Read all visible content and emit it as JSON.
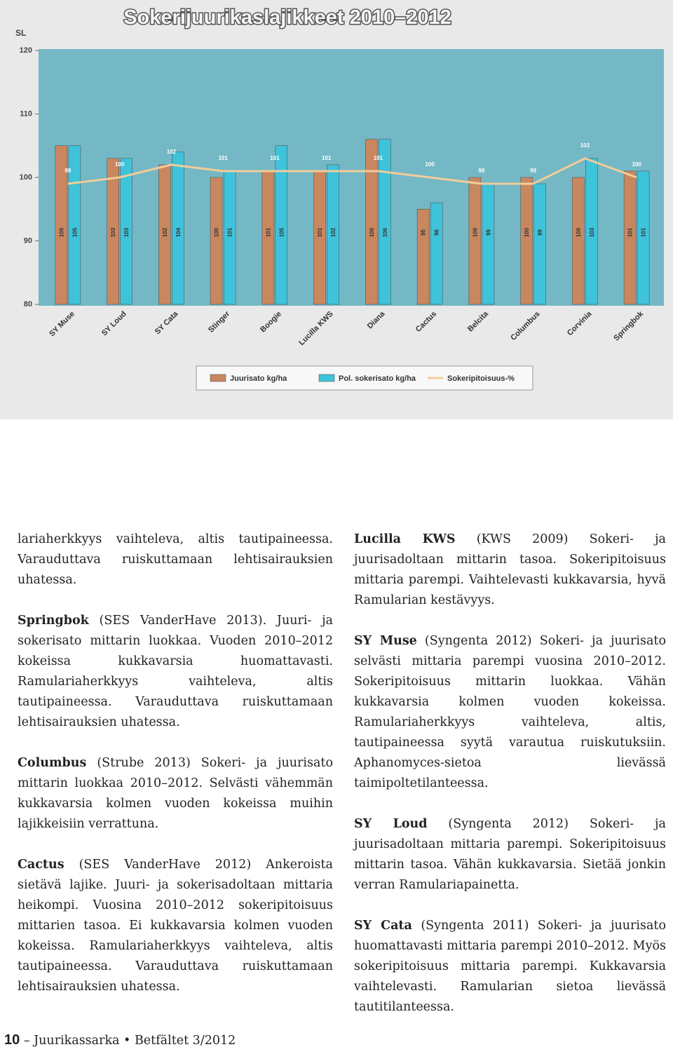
{
  "chart_data": {
    "type": "bar",
    "title": "Sokerijuurikaslajikkeet 2010–2012",
    "y_label": "SL",
    "categories": [
      "SY Muse",
      "SY Loud",
      "SY Cata",
      "Stinger",
      "Boogie",
      "Lucilla KWS",
      "Diana",
      "Cactus",
      "Belcita",
      "Columbus",
      "Corvinia",
      "Springbok"
    ],
    "series": [
      {
        "name": "Juurisato kg/ha",
        "color": "#c9875f",
        "type": "bar",
        "values": [
          105,
          103,
          102,
          100,
          101,
          101,
          106,
          95,
          100,
          100,
          100,
          101
        ]
      },
      {
        "name": "Pol. sokerisato kg/ha",
        "color": "#3ec3da",
        "type": "bar",
        "values": [
          105,
          103,
          104,
          101,
          105,
          102,
          106,
          96,
          99,
          99,
          103,
          101
        ]
      },
      {
        "name": "Sokeripitoisuus-%",
        "color": "#f2cc98",
        "type": "line",
        "values": [
          99,
          100,
          102,
          101,
          101,
          101,
          101,
          100,
          99,
          99,
          103,
          100
        ]
      }
    ],
    "ylim": [
      80,
      120
    ],
    "yticks": [
      80,
      90,
      100,
      110,
      120
    ],
    "grid": false,
    "legend": "bottom"
  },
  "columns": [
    {
      "paragraphs": [
        {
          "text": "lariaherkkyys vaihteleva, altis tautipaineessa. Varauduttava ruiskuttamaan lehtisairauksien uhatessa."
        },
        {
          "name": "Springbok",
          "text": "(SES VanderHave 2013). Juuri- ja sokerisato mittarin luokkaa. Vuoden 2010–2012 kokeissa kukkavarsia huomattavasti. Ramulariaherkkyys vaihteleva, altis tautipaineessa. Varauduttava ruiskuttamaan lehtisairauksien uhatessa."
        },
        {
          "name": "Columbus",
          "text": "(Strube 2013) Sokeri- ja juurisato mittarin luokkaa 2010–2012. Selvästi vähemmän kukkavarsia kolmen vuoden kokeissa muihin lajikkeisiin verrattuna."
        },
        {
          "name": "Cactus",
          "text": "(SES VanderHave 2012) Ankeroista sietävä lajike. Juuri- ja sokerisadoltaan mittaria heikompi. Vuosina 2010–2012 sokeripitoisuus mittarien tasoa. Ei kukkavarsia kolmen vuoden kokeissa. Ramulariaherkkyys vaihteleva, altis tautipaineessa. Varauduttava ruiskuttamaan lehtisairauksien uhatessa."
        }
      ]
    },
    {
      "paragraphs": [
        {
          "name": "Lucilla KWS",
          "text": "(KWS 2009) Sokeri- ja juurisadoltaan mittarin tasoa. Sokeripitoisuus mittaria parempi. Vaihtelevasti kukkavarsia, hyvä Ramularian kestävyys."
        },
        {
          "name": "SY Muse",
          "text": "(Syngenta 2012) Sokeri- ja juurisato selvästi mittaria parempi vuosina 2010–2012. Sokeripitoisuus mittarin luokkaa. Vähän kukkavarsia kolmen vuoden kokeissa. Ramulariaherkkyys vaihteleva, altis, tautipaineessa syytä varautua ruiskutuksiin. Aphanomyces-sietoa lievässä taimipoltetilanteessa."
        },
        {
          "name": "SY Loud",
          "text": "(Syngenta 2012) Sokeri- ja juurisadoltaan mittaria parempi. Sokeripitoisuus mittarin tasoa. Vähän kukkavarsia. Sietää jonkin verran Ramulariapainetta."
        },
        {
          "name": "SY Cata",
          "text": "(Syngenta 2011) Sokeri- ja juurisato huomattavasti mittaria parempi 2010–2012. Myös sokeripitoisuus mittaria parempi. Kukkavarsia vaihtelevasti. Ramularian sietoa lievässä tautitilanteessa."
        }
      ]
    }
  ],
  "footer": {
    "page": "10",
    "text": "– Juurikassarka • Betfältet 3/2012"
  }
}
